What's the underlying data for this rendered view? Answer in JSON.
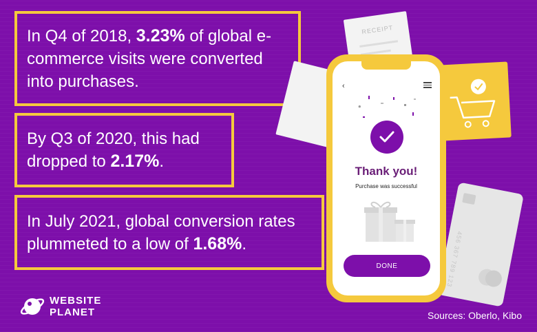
{
  "stats": [
    {
      "pre": "In Q4 of 2018, ",
      "highlight": "3.23%",
      "post": " of global e-commerce visits were converted into purchases."
    },
    {
      "pre": "By Q3 of 2020, this had dropped to ",
      "highlight": "2.17%",
      "post": "."
    },
    {
      "pre": "In July 2021, global conversion rates plummeted to a low of ",
      "highlight": "1.68%",
      "post": "."
    }
  ],
  "phone": {
    "back_icon": "‹",
    "title": "Thank you!",
    "subtitle": "Purchase was successful",
    "button_label": "DONE"
  },
  "receipt_label": "RECEIPT",
  "card_number": "456 367 789 123",
  "logo": {
    "line1": "WEBSITE",
    "line2": "PLANET"
  },
  "sources": "Sources: Oberlo, Kibo",
  "colors": {
    "background": "#7d0faa",
    "accent": "#f5c93d",
    "text": "#ffffff"
  }
}
